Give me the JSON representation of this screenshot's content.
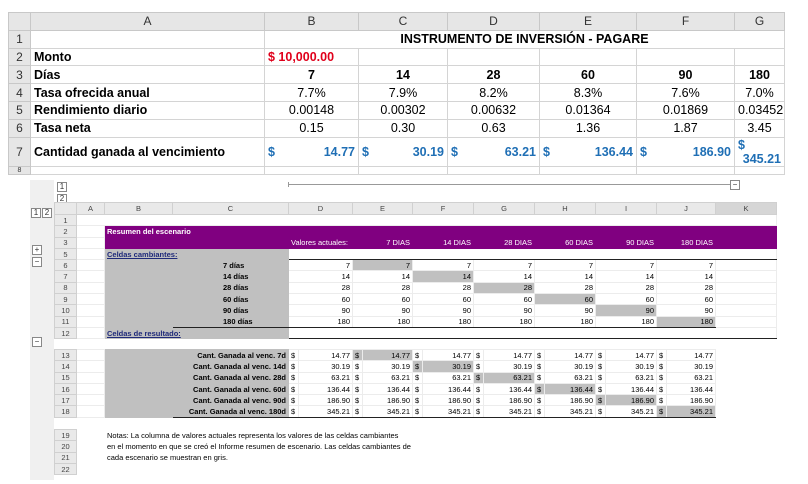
{
  "top_sheet": {
    "columns": [
      "A",
      "B",
      "C",
      "D",
      "E",
      "F",
      "G"
    ],
    "title": "INSTRUMENTO DE INVERSIÓN - PAGARE",
    "rows": [
      {
        "num": "1"
      },
      {
        "num": "2",
        "label": "Monto",
        "value": "$ 10,000.00"
      },
      {
        "num": "3",
        "label": "Días",
        "values": [
          "7",
          "14",
          "28",
          "60",
          "90",
          "180"
        ]
      },
      {
        "num": "4",
        "label": "Tasa ofrecida anual",
        "values": [
          "7.7%",
          "7.9%",
          "8.2%",
          "8.3%",
          "7.6%",
          "7.0%"
        ]
      },
      {
        "num": "5",
        "label": "Rendimiento diario",
        "values": [
          "0.00148",
          "0.00302",
          "0.00632",
          "0.01364",
          "0.01869",
          "0.03452"
        ]
      },
      {
        "num": "6",
        "label": "Tasa neta",
        "values": [
          "0.15",
          "0.30",
          "0.63",
          "1.36",
          "1.87",
          "3.45"
        ]
      },
      {
        "num": "7",
        "label": "Cantidad ganada al vencimiento",
        "currency": "$",
        "values": [
          "14.77",
          "30.19",
          "63.21",
          "136.44",
          "186.90",
          "345.21"
        ]
      },
      {
        "num": "8"
      }
    ]
  },
  "scenario": {
    "outline_levels": [
      "1",
      "2"
    ],
    "collapse_btn": "−",
    "expand_btn": "+",
    "columns": [
      "A",
      "B",
      "C",
      "D",
      "E",
      "F",
      "G",
      "H",
      "I",
      "J",
      "K"
    ],
    "row_nums": [
      "1",
      "2",
      "3",
      "5",
      "6",
      "7",
      "8",
      "9",
      "10",
      "11",
      "12",
      "13",
      "14",
      "15",
      "16",
      "17",
      "18",
      "19",
      "20",
      "21",
      "22"
    ],
    "title": "Resumen del escenario",
    "header_labels": [
      "Valores actuales:",
      "7 DIAS",
      "14 DIAS",
      "28 DIAS",
      "60 DIAS",
      "90 DIAS",
      "180 DIAS"
    ],
    "changing_header": "Celdas cambiantes:",
    "changing_rows": [
      {
        "label": "7 días",
        "values": [
          "7",
          "7",
          "7",
          "7",
          "7",
          "7",
          "7"
        ]
      },
      {
        "label": "14 días",
        "values": [
          "14",
          "14",
          "14",
          "14",
          "14",
          "14",
          "14"
        ]
      },
      {
        "label": "28 días",
        "values": [
          "28",
          "28",
          "28",
          "28",
          "28",
          "28",
          "28"
        ]
      },
      {
        "label": "60 días",
        "values": [
          "60",
          "60",
          "60",
          "60",
          "60",
          "60",
          "60"
        ]
      },
      {
        "label": "90 días",
        "values": [
          "90",
          "90",
          "90",
          "90",
          "90",
          "90",
          "90"
        ]
      },
      {
        "label": "180 días",
        "values": [
          "180",
          "180",
          "180",
          "180",
          "180",
          "180",
          "180"
        ]
      }
    ],
    "result_header": "Celdas de resultado:",
    "currency": "$",
    "result_rows": [
      {
        "label": "Cant. Ganada al venc. 7d",
        "values": [
          "14.77",
          "14.77",
          "14.77",
          "14.77",
          "14.77",
          "14.77",
          "14.77"
        ]
      },
      {
        "label": "Cant. Ganada al venc. 14d",
        "values": [
          "30.19",
          "30.19",
          "30.19",
          "30.19",
          "30.19",
          "30.19",
          "30.19"
        ]
      },
      {
        "label": "Cant. Ganada al venc. 28d",
        "values": [
          "63.21",
          "63.21",
          "63.21",
          "63.21",
          "63.21",
          "63.21",
          "63.21"
        ]
      },
      {
        "label": "Cant. Ganada al venc. 60d",
        "values": [
          "136.44",
          "136.44",
          "136.44",
          "136.44",
          "136.44",
          "136.44",
          "136.44"
        ]
      },
      {
        "label": "Cant. Ganada al venc. 90d",
        "values": [
          "186.90",
          "186.90",
          "186.90",
          "186.90",
          "186.90",
          "186.90",
          "186.90"
        ]
      },
      {
        "label": "Cant. Ganada al venc. 180d",
        "values": [
          "345.21",
          "345.21",
          "345.21",
          "345.21",
          "345.21",
          "345.21",
          "345.21"
        ]
      }
    ],
    "notes": [
      "Notas: La columna de valores actuales representa los valores de las celdas cambiantes",
      "en el momento en que se creó el Informe resumen de escenario. Las celdas cambiantes de",
      "cada escenario se muestran en gris."
    ]
  },
  "colors": {
    "purple": "#800080",
    "accent_blue": "#1f6fb5",
    "red": "#e0001b",
    "scenario_grey": "#c0c0c0"
  }
}
